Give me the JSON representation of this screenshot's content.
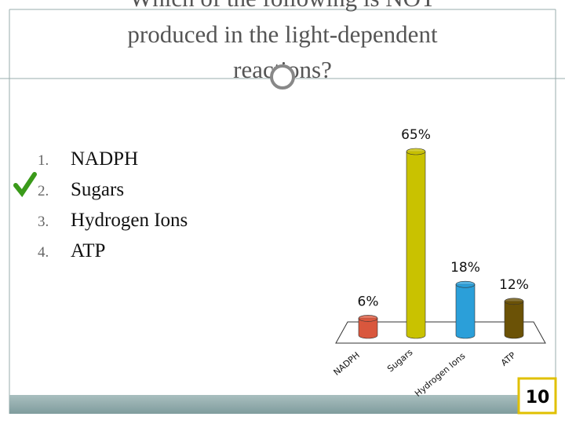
{
  "question": {
    "lines": [
      "Which of the following is NOT",
      "produced in the light-dependent",
      "reactions?"
    ]
  },
  "options": [
    {
      "number": "1.",
      "text": "NADPH"
    },
    {
      "number": "2.",
      "text": "Sugars"
    },
    {
      "number": "3.",
      "text": "Hydrogen Ions"
    },
    {
      "number": "4.",
      "text": "ATP"
    }
  ],
  "counter": "10",
  "chart_data": {
    "type": "bar",
    "categories": [
      "NADPH",
      "Sugars",
      "Hydrogen Ions",
      "ATP"
    ],
    "values": [
      6,
      65,
      18,
      12
    ],
    "value_labels": [
      "6%",
      "65%",
      "18%",
      "12%"
    ],
    "colors": [
      "#d9573d",
      "#c9c200",
      "#2b9fd9",
      "#6b5206"
    ]
  }
}
